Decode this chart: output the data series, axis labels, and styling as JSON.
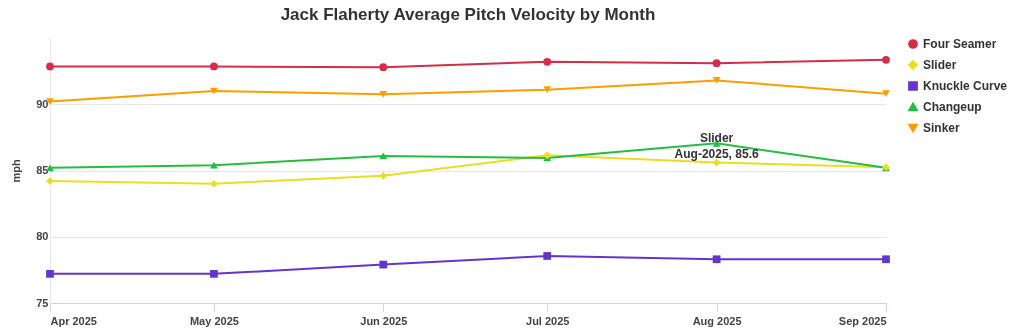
{
  "chart_data": {
    "type": "line",
    "title": "Jack Flaherty Average Pitch Velocity by Month",
    "ylabel": "mph",
    "x": [
      "2025-04",
      "2025-05",
      "2025-06",
      "2025-07",
      "2025-08",
      "2025-09"
    ],
    "xlim": [
      "2025-04",
      "2025-09"
    ],
    "xticks": [
      {
        "value": "2025-04",
        "label": "Apr 2025"
      },
      {
        "value": "2025-05",
        "label": "May 2025"
      },
      {
        "value": "2025-06",
        "label": "Jun 2025"
      },
      {
        "value": "2025-07",
        "label": "Jul 2025"
      },
      {
        "value": "2025-08",
        "label": "Aug 2025"
      },
      {
        "value": "2025-09",
        "label": "Sep 2025"
      }
    ],
    "ylim": [
      75,
      95
    ],
    "yticks": [
      75,
      80,
      85,
      90
    ],
    "grid": "y",
    "legend": "right",
    "line_style": "solid",
    "series": [
      {
        "name": "Four Seamer",
        "color": "#d22d49",
        "marker": "circle",
        "values": [
          92.85,
          92.85,
          92.8,
          93.2,
          93.1,
          93.35
        ]
      },
      {
        "name": "Slider",
        "color": "#e8df22",
        "marker": "diamond",
        "values": [
          84.2,
          84.0,
          84.6,
          86.15,
          85.6,
          85.25
        ]
      },
      {
        "name": "Knuckle Curve",
        "color": "#6236cd",
        "marker": "square",
        "values": [
          77.2,
          77.2,
          77.9,
          78.55,
          78.3,
          78.3
        ]
      },
      {
        "name": "Changeup",
        "color": "#23be41",
        "marker": "triangle",
        "values": [
          85.2,
          85.4,
          86.1,
          85.95,
          87.05,
          85.2
        ]
      },
      {
        "name": "Sinker",
        "color": "#fe9d00",
        "marker": "triangle-down",
        "values": [
          90.2,
          91.0,
          90.75,
          91.1,
          91.8,
          90.8
        ]
      }
    ],
    "annotations": [
      {
        "text": "Slider\nAug-2025, 85.6",
        "x": "2025-08",
        "y": 85.6
      }
    ]
  }
}
